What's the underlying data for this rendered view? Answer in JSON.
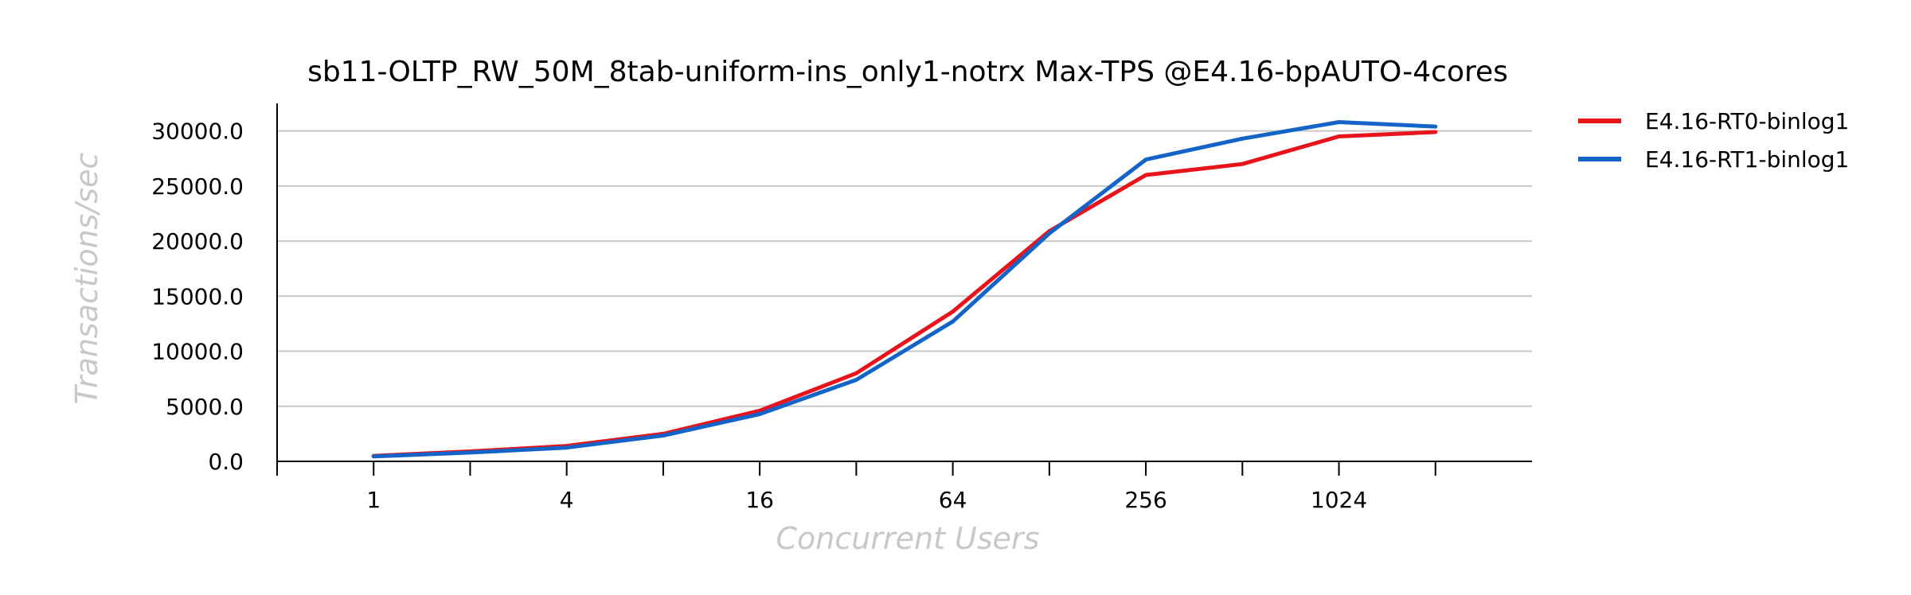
{
  "chart_data": {
    "type": "line",
    "title": "sb11-OLTP_RW_50M_8tab-uniform-ins_only1-notrx Max-TPS @E4.16-bpAUTO-4cores",
    "xlabel": "Concurrent Users",
    "ylabel": "Transactions/sec",
    "x": [
      1,
      2,
      4,
      8,
      16,
      32,
      64,
      128,
      256,
      512,
      1024,
      2048
    ],
    "x_tick_labels": [
      "1",
      "4",
      "16",
      "64",
      "256",
      "1024"
    ],
    "x_tick_values": [
      1,
      4,
      16,
      64,
      256,
      1024
    ],
    "x_minor_ticks": [
      0.5,
      2,
      8,
      32,
      128,
      512,
      2048
    ],
    "x_scale": "log2",
    "xlim": [
      0.5,
      4096
    ],
    "ylim": [
      0,
      32500
    ],
    "y_ticks": [
      0,
      5000,
      10000,
      15000,
      20000,
      25000,
      30000
    ],
    "y_tick_labels": [
      "0.0",
      "5000.0",
      "10000.0",
      "15000.0",
      "20000.0",
      "25000.0",
      "30000.0"
    ],
    "grid": "horizontal",
    "legend_position": "right",
    "series": [
      {
        "name": "E4.16-RT0-binlog1",
        "color": "#e8141c",
        "values": [
          500,
          900,
          1400,
          2500,
          4600,
          8000,
          13600,
          20900,
          26000,
          27000,
          29500,
          29900
        ]
      },
      {
        "name": "E4.16-RT1-binlog1",
        "color": "#1464c8",
        "values": [
          450,
          800,
          1250,
          2350,
          4300,
          7400,
          12700,
          20700,
          27400,
          29300,
          30800,
          30400
        ]
      }
    ]
  }
}
